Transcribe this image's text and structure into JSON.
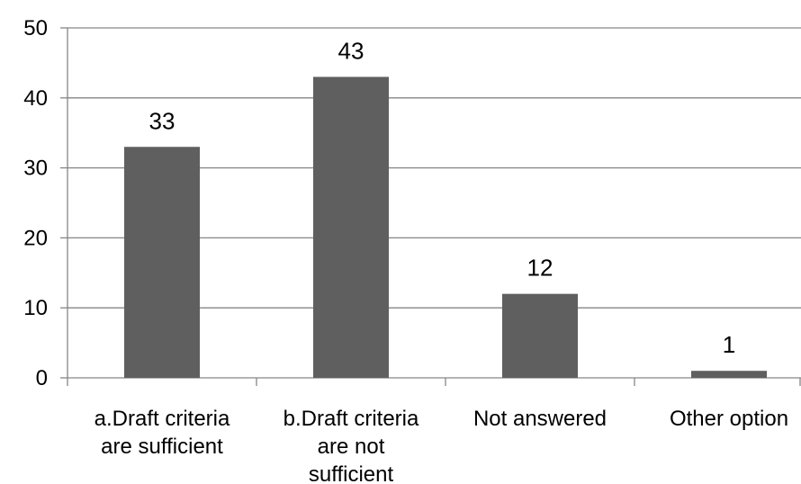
{
  "chart_data": {
    "type": "bar",
    "categories": [
      [
        "a.Draft criteria",
        "are sufficient"
      ],
      [
        "b.Draft criteria",
        "are not",
        "sufficient"
      ],
      [
        "Not answered"
      ],
      [
        "Other option"
      ]
    ],
    "values": [
      33,
      43,
      12,
      1
    ],
    "data_labels": [
      "33",
      "43",
      "12",
      "1"
    ],
    "ylim": [
      0,
      50
    ],
    "yticks": [
      0,
      10,
      20,
      30,
      40,
      50
    ],
    "ytick_labels": [
      "0",
      "10",
      "20",
      "30",
      "40",
      "50"
    ],
    "grid": true,
    "legend": "none",
    "title": "",
    "xlabel": "",
    "ylabel": "",
    "colors": {
      "bar": "#5f5f5f",
      "grid": "#868686",
      "axis": "#868686"
    }
  }
}
